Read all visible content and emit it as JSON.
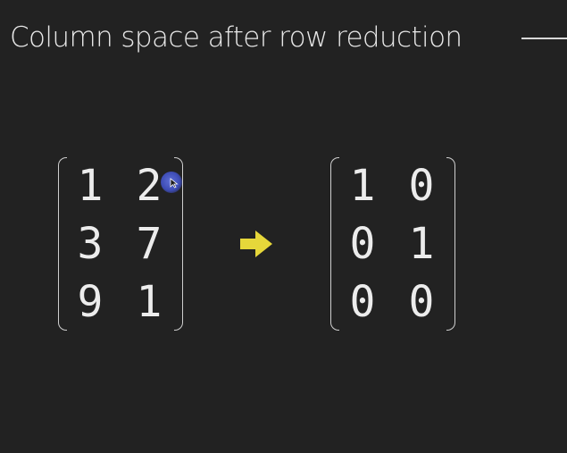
{
  "title": "Column space after row reduction",
  "matrices": {
    "original": [
      [
        "1",
        "2"
      ],
      [
        "3",
        "7"
      ],
      [
        "9",
        "1"
      ]
    ],
    "reduced": [
      [
        "1",
        "0"
      ],
      [
        "0",
        "1"
      ],
      [
        "0",
        "0"
      ]
    ]
  },
  "colors": {
    "background": "#222222",
    "text": "#ececec",
    "arrow": "#e6d73a",
    "cursor_highlight": "#4a59c4"
  },
  "icons": {
    "transform_arrow": "right-arrow-icon",
    "cursor": "mouse-pointer-icon"
  }
}
